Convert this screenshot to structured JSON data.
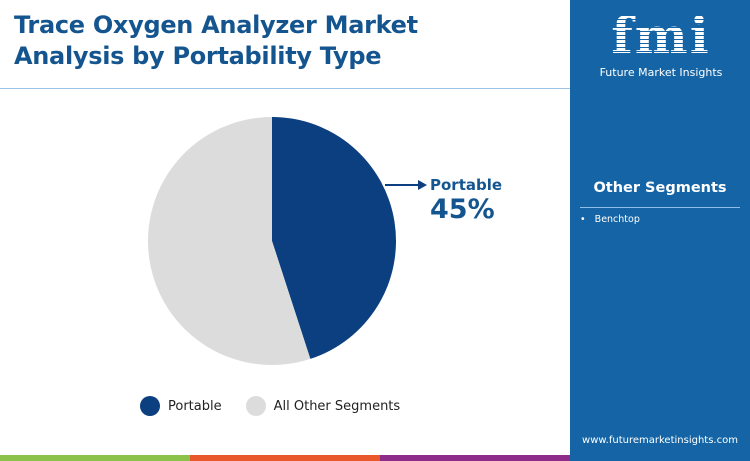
{
  "title": [
    "Trace Oxygen Analyzer Market",
    "Analysis by Portability Type"
  ],
  "logo": {
    "mark": "fmi",
    "name": "Future Market Insights"
  },
  "sidebar": {
    "heading": "Other Segments",
    "items": [
      "Benchtop"
    ],
    "url": "www.futuremarketinsights.com"
  },
  "colors": {
    "portable": "#0b3f80",
    "other": "#dcdcdc",
    "sidebar": "#1565a6",
    "title": "#15558f"
  },
  "chart_data": {
    "type": "pie",
    "categories": [
      "Portable",
      "All Other Segments"
    ],
    "values": [
      45,
      55
    ],
    "callout": {
      "label": "Portable",
      "value": "45%"
    },
    "legend": "bottom"
  }
}
